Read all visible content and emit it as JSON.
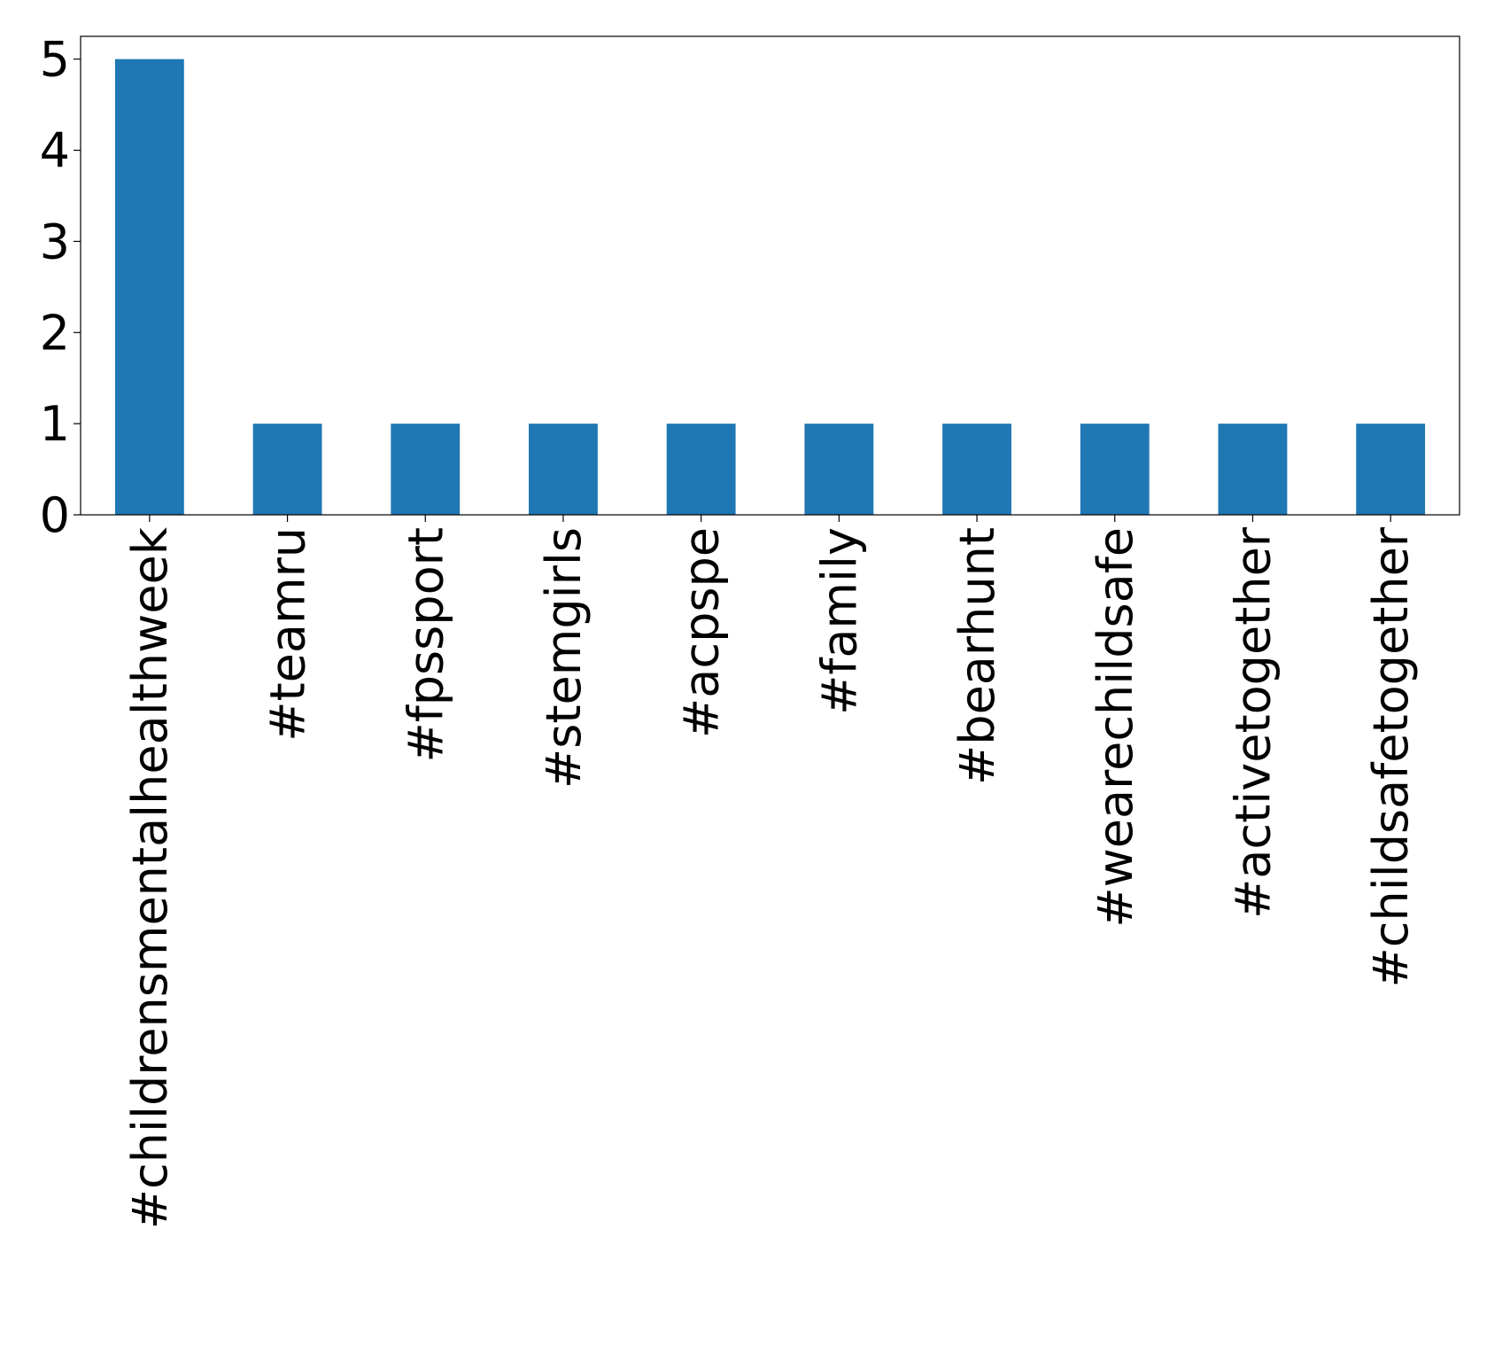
{
  "chart_data": {
    "type": "bar",
    "categories": [
      "#childrensmentalhealthweek",
      "#teamru",
      "#fpssport",
      "#stemgirls",
      "#acpspe",
      "#family",
      "#bearhunt",
      "#wearechildsafe",
      "#activetogether",
      "#childsafetogether"
    ],
    "values": [
      5,
      1,
      1,
      1,
      1,
      1,
      1,
      1,
      1,
      1
    ],
    "color": "#1f77b4",
    "ylim": [
      0,
      5.25
    ],
    "yticks": [
      0,
      1,
      2,
      3,
      4,
      5
    ],
    "grid": false
  }
}
